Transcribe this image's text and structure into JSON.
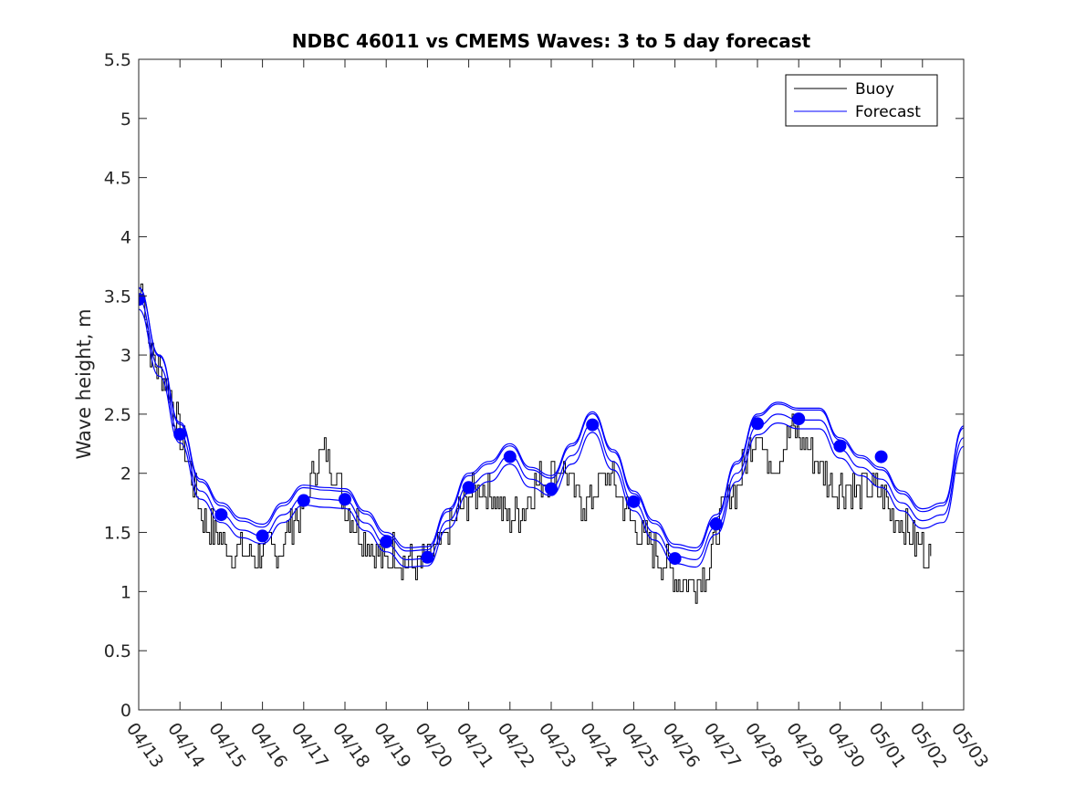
{
  "chart_data": {
    "type": "line",
    "title": "NDBC 46011 vs CMEMS Waves: 3 to 5 day forecast",
    "xlabel": "",
    "ylabel": "Wave height, m",
    "xlim": [
      "04/13",
      "05/03"
    ],
    "ylim": [
      0,
      5.5
    ],
    "x_ticks": [
      "04/13",
      "04/14",
      "04/15",
      "04/16",
      "04/17",
      "04/18",
      "04/19",
      "04/20",
      "04/21",
      "04/22",
      "04/23",
      "04/24",
      "04/25",
      "04/26",
      "04/27",
      "04/28",
      "04/29",
      "04/30",
      "05/01",
      "05/02",
      "05/03"
    ],
    "y_ticks": [
      "0",
      "0.5",
      "1",
      "1.5",
      "2",
      "2.5",
      "3",
      "3.5",
      "4",
      "4.5",
      "5",
      "5.5"
    ],
    "grid": false,
    "legend": {
      "placement": "top-right",
      "entries": [
        "Buoy",
        "Forecast"
      ]
    },
    "colors": {
      "buoy": "#000000",
      "forecast": "#0000ff",
      "marker": "#0000ff"
    },
    "series": [
      {
        "name": "Buoy",
        "x_days": [
          0.0,
          0.1,
          0.2,
          0.4,
          0.6,
          0.8,
          1.0,
          1.2,
          1.4,
          1.6,
          1.8,
          2.0,
          2.3,
          2.6,
          2.9,
          3.1,
          3.3,
          3.6,
          3.8,
          4.0,
          4.2,
          4.5,
          4.8,
          5.0,
          5.2,
          5.5,
          5.8,
          6.0,
          6.2,
          6.5,
          6.8,
          7.0,
          7.2,
          7.5,
          7.8,
          8.0,
          8.3,
          8.6,
          9.0,
          9.3,
          9.6,
          10.0,
          10.3,
          10.6,
          10.9,
          11.1,
          11.4,
          11.7,
          12.0,
          12.2,
          12.5,
          12.8,
          13.0,
          13.2,
          13.5,
          13.8,
          14.0,
          14.2,
          14.5,
          14.8,
          15.0,
          15.2,
          15.5,
          15.8,
          16.0,
          16.3,
          16.6,
          16.9,
          17.1,
          17.4,
          17.7,
          18.0,
          18.3,
          18.6,
          18.9,
          19.2
        ],
        "y": [
          3.5,
          3.6,
          3.2,
          2.9,
          2.8,
          2.6,
          2.3,
          2.1,
          1.8,
          1.6,
          1.5,
          1.4,
          1.35,
          1.3,
          1.3,
          1.4,
          1.3,
          1.5,
          1.65,
          1.7,
          2.0,
          2.2,
          2.0,
          1.7,
          1.6,
          1.45,
          1.3,
          1.25,
          1.35,
          1.25,
          1.2,
          1.3,
          1.3,
          1.5,
          1.7,
          1.8,
          1.9,
          1.8,
          1.6,
          1.7,
          1.9,
          2.0,
          2.05,
          1.8,
          1.75,
          1.9,
          2.0,
          1.8,
          1.55,
          1.45,
          1.35,
          1.2,
          1.1,
          1.05,
          1.1,
          1.2,
          1.5,
          1.75,
          1.9,
          2.2,
          2.4,
          2.1,
          2.1,
          2.4,
          2.3,
          2.15,
          2.0,
          1.85,
          1.9,
          1.85,
          1.9,
          1.8,
          1.65,
          1.5,
          1.4,
          1.3
        ]
      },
      {
        "name": "Forecast",
        "x_days": [
          0.0,
          0.5,
          1.0,
          1.5,
          2.0,
          2.5,
          3.0,
          3.5,
          4.0,
          4.5,
          5.0,
          5.5,
          6.0,
          6.5,
          7.0,
          7.5,
          8.0,
          8.5,
          9.0,
          9.5,
          10.0,
          10.5,
          11.0,
          11.5,
          12.0,
          12.5,
          13.0,
          13.5,
          14.0,
          14.5,
          15.0,
          15.5,
          16.0,
          16.5,
          17.0,
          17.5,
          18.0,
          18.5,
          19.0,
          19.5,
          20.0
        ],
        "y": [
          3.47,
          2.9,
          2.33,
          1.85,
          1.65,
          1.52,
          1.47,
          1.65,
          1.8,
          1.78,
          1.77,
          1.58,
          1.4,
          1.27,
          1.28,
          1.6,
          1.9,
          2.0,
          2.15,
          1.95,
          1.88,
          2.15,
          2.42,
          2.1,
          1.75,
          1.5,
          1.3,
          1.27,
          1.55,
          2.0,
          2.4,
          2.5,
          2.45,
          2.45,
          2.2,
          2.05,
          1.95,
          1.75,
          1.6,
          1.65,
          2.3
        ]
      }
    ],
    "forecast_points": {
      "x_days": [
        0.0,
        1.0,
        2.0,
        3.0,
        4.0,
        5.0,
        6.0,
        7.0,
        8.0,
        9.0,
        10.0,
        11.0,
        12.0,
        13.0,
        14.0,
        15.0,
        16.0,
        17.0,
        18.0
      ],
      "y": [
        3.47,
        2.33,
        1.65,
        1.47,
        1.77,
        1.78,
        1.42,
        1.29,
        1.88,
        2.14,
        1.87,
        2.41,
        1.76,
        1.28,
        1.57,
        2.42,
        2.46,
        2.23,
        2.14
      ]
    }
  }
}
